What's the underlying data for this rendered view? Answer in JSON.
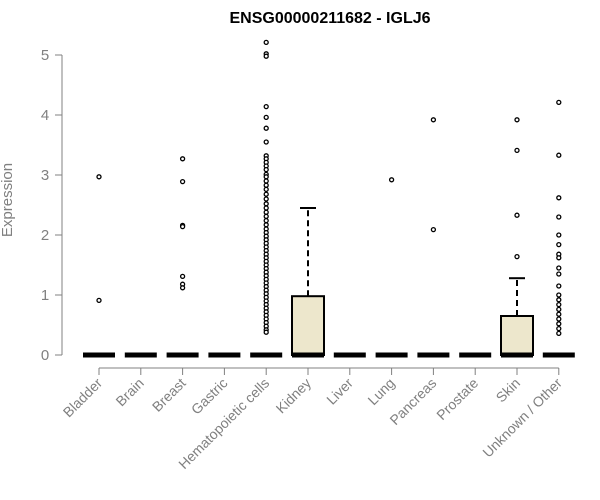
{
  "chart_data": {
    "type": "boxplot",
    "title": "ENSG00000211682 - IGLJ6",
    "xlabel": "",
    "ylabel": "Expression",
    "ylim": [
      0,
      5.2
    ],
    "yticks": [
      0,
      1,
      2,
      3,
      4,
      5
    ],
    "grid": false,
    "legend": "none",
    "box_fill": "#ede7cc",
    "categories": [
      "Bladder",
      "Brain",
      "Breast",
      "Gastric",
      "Hematopoietic cells",
      "Kidney",
      "Liver",
      "Lung",
      "Pancreas",
      "Prostate",
      "Skin",
      "Unknown / Other"
    ],
    "boxes": [
      {
        "min": 0,
        "q1": 0,
        "median": 0,
        "q3": 0,
        "max": 0
      },
      {
        "min": 0,
        "q1": 0,
        "median": 0,
        "q3": 0,
        "max": 0
      },
      {
        "min": 0,
        "q1": 0,
        "median": 0,
        "q3": 0,
        "max": 0
      },
      {
        "min": 0,
        "q1": 0,
        "median": 0,
        "q3": 0,
        "max": 0
      },
      {
        "min": 0,
        "q1": 0,
        "median": 0,
        "q3": 0,
        "max": 0
      },
      {
        "min": 0,
        "q1": 0,
        "median": 0,
        "q3": 0.98,
        "max": 2.45
      },
      {
        "min": 0,
        "q1": 0,
        "median": 0,
        "q3": 0,
        "max": 0
      },
      {
        "min": 0,
        "q1": 0,
        "median": 0,
        "q3": 0,
        "max": 0
      },
      {
        "min": 0,
        "q1": 0,
        "median": 0,
        "q3": 0,
        "max": 0
      },
      {
        "min": 0,
        "q1": 0,
        "median": 0,
        "q3": 0,
        "max": 0
      },
      {
        "min": 0,
        "q1": 0,
        "median": 0,
        "q3": 0.65,
        "max": 1.28
      },
      {
        "min": 0,
        "q1": 0,
        "median": 0,
        "q3": 0,
        "max": 0
      }
    ],
    "outliers": [
      [
        2.97,
        0.91
      ],
      [],
      [
        3.27,
        2.89,
        2.16,
        2.14,
        1.31,
        1.18,
        1.12
      ],
      [],
      [
        5.21,
        5.02,
        4.98,
        4.14,
        3.96,
        3.78,
        3.55,
        3.32,
        3.27,
        3.21,
        3.15,
        3.09,
        3.01,
        2.97,
        2.9,
        2.83,
        2.76,
        2.68,
        2.6,
        2.52,
        2.45,
        2.38,
        2.31,
        2.24,
        2.17,
        2.1,
        2.04,
        1.98,
        1.92,
        1.86,
        1.8,
        1.74,
        1.68,
        1.62,
        1.56,
        1.5,
        1.44,
        1.38,
        1.32,
        1.26,
        1.2,
        1.14,
        1.08,
        1.02,
        0.96,
        0.9,
        0.84,
        0.78,
        0.72,
        0.66,
        0.6,
        0.54,
        0.48,
        0.42,
        0.38
      ],
      [],
      [],
      [
        2.92
      ],
      [
        3.92,
        2.09
      ],
      [],
      [
        3.92,
        3.41,
        2.33,
        1.64
      ],
      [
        4.21,
        3.33,
        2.62,
        2.3,
        2.0,
        1.84,
        1.68,
        1.62,
        1.45,
        1.35,
        1.15,
        1.0,
        0.92,
        0.84,
        0.76,
        0.68,
        0.6,
        0.52,
        0.44,
        0.36
      ]
    ]
  }
}
